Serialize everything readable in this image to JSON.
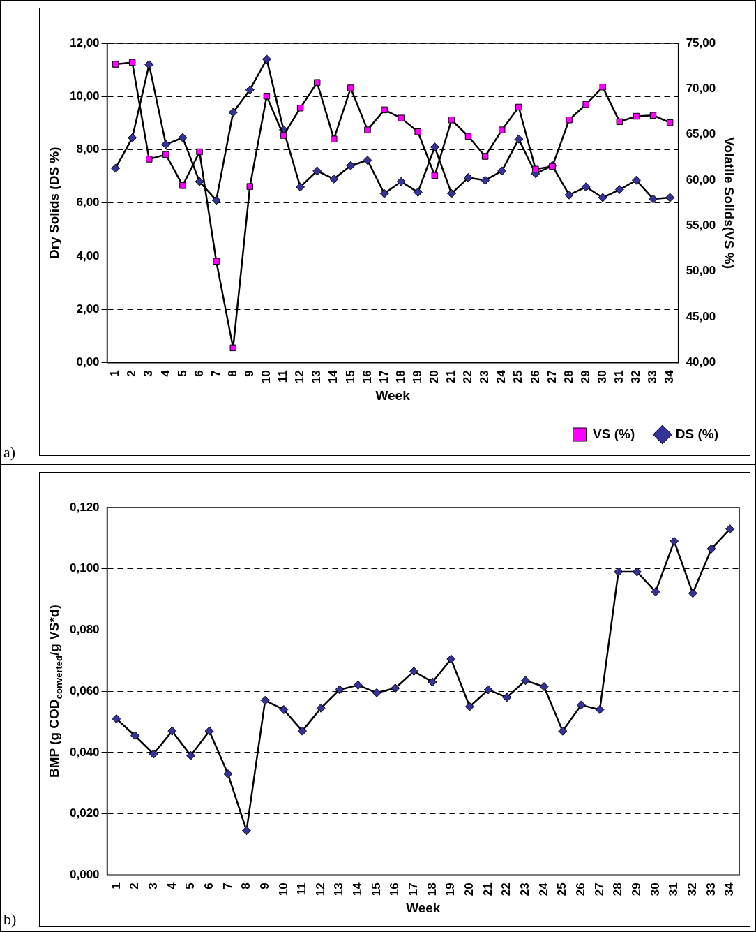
{
  "chart_data": [
    {
      "type": "line",
      "xlabel": "Week",
      "ylabel": "Dry Solids (DS %)",
      "y2label": "Volatile Solids(VS %)",
      "categories": [
        "1",
        "2",
        "3",
        "4",
        "5",
        "6",
        "7",
        "8",
        "9",
        "10",
        "11",
        "12",
        "13",
        "14",
        "15",
        "16",
        "17",
        "18",
        "19",
        "20",
        "21",
        "22",
        "23",
        "24",
        "25",
        "26",
        "27",
        "28",
        "29",
        "30",
        "31",
        "32",
        "33",
        "34"
      ],
      "series": [
        {
          "name": "DS (%)",
          "color": "#333399",
          "marker": "diamond",
          "values": [
            7.3,
            8.45,
            11.2,
            8.2,
            8.45,
            6.8,
            6.1,
            9.4,
            10.25,
            11.4,
            8.75,
            6.6,
            7.2,
            6.9,
            7.4,
            7.6,
            6.35,
            6.8,
            6.4,
            8.1,
            6.35,
            6.95,
            6.85,
            7.2,
            8.4,
            7.1,
            7.4,
            6.3,
            6.6,
            6.2,
            6.5,
            6.85,
            6.15,
            6.2
          ]
        },
        {
          "name": "VS (%)",
          "color": "#ff00ff",
          "marker": "square",
          "axis": "y2",
          "values": [
            72.7,
            72.9,
            62.3,
            62.8,
            59.4,
            63.1,
            51.1,
            41.6,
            59.3,
            69.2,
            64.9,
            67.9,
            70.7,
            64.5,
            70.1,
            65.5,
            67.7,
            66.8,
            65.3,
            60.5,
            66.6,
            64.8,
            62.6,
            65.5,
            68.0,
            61.2,
            61.5,
            66.6,
            68.3,
            70.2,
            66.4,
            67.0,
            67.1,
            66.3
          ]
        }
      ],
      "ylim": [
        0,
        12
      ],
      "yticks": [
        {
          "value": 0,
          "label": "0,00"
        },
        {
          "value": 2,
          "label": "2,00"
        },
        {
          "value": 4,
          "label": "4,00"
        },
        {
          "value": 6,
          "label": "6,00"
        },
        {
          "value": 8,
          "label": "8,00"
        },
        {
          "value": 10,
          "label": "10,00"
        },
        {
          "value": 12,
          "label": "12,00"
        }
      ],
      "y2lim": [
        40,
        75
      ],
      "y2ticks": [
        {
          "value": 40,
          "label": "40,00"
        },
        {
          "value": 45,
          "label": "45,00"
        },
        {
          "value": 50,
          "label": "50,00"
        },
        {
          "value": 55,
          "label": "55,00"
        },
        {
          "value": 60,
          "label": "60,00"
        },
        {
          "value": 65,
          "label": "65,00"
        },
        {
          "value": 70,
          "label": "70,00"
        },
        {
          "value": 75,
          "label": "75,00"
        }
      ],
      "grid": "y",
      "legend": "bottom right",
      "line_style": "solid",
      "annotations": [
        "a)"
      ]
    },
    {
      "type": "line",
      "xlabel": "Week",
      "ylabel": "BMP (g COD$_{converted}$/g VS*d)",
      "categories": [
        "1",
        "2",
        "3",
        "4",
        "5",
        "6",
        "7",
        "8",
        "9",
        "10",
        "11",
        "12",
        "13",
        "14",
        "15",
        "16",
        "17",
        "18",
        "19",
        "20",
        "21",
        "22",
        "23",
        "24",
        "25",
        "26",
        "27",
        "28",
        "29",
        "30",
        "31",
        "32",
        "33",
        "34"
      ],
      "series": [
        {
          "color": "#333399",
          "marker": "diamond",
          "values": [
            0.051,
            0.0455,
            0.0395,
            0.047,
            0.039,
            0.047,
            0.033,
            0.0145,
            0.057,
            0.054,
            0.047,
            0.0545,
            0.0605,
            0.062,
            0.0595,
            0.061,
            0.0665,
            0.063,
            0.0705,
            0.055,
            0.0605,
            0.058,
            0.0635,
            0.0615,
            0.047,
            0.0555,
            0.054,
            0.099,
            0.099,
            0.0925,
            0.109,
            0.092,
            0.1065,
            0.113
          ]
        }
      ],
      "ylim": [
        0,
        0.12
      ],
      "yticks": [
        {
          "value": 0,
          "label": "0,000"
        },
        {
          "value": 0.02,
          "label": "0,020"
        },
        {
          "value": 0.04,
          "label": "0,040"
        },
        {
          "value": 0.06,
          "label": "0,060"
        },
        {
          "value": 0.08,
          "label": "0,080"
        },
        {
          "value": 0.1,
          "label": "0,100"
        },
        {
          "value": 0.12,
          "label": "0,120"
        }
      ],
      "grid": "y",
      "legend": false,
      "line_style": "solid",
      "annotations": [
        "b)"
      ]
    }
  ]
}
